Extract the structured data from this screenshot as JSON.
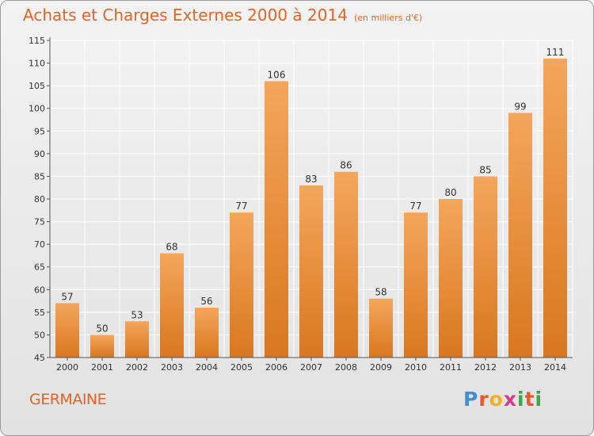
{
  "header": {
    "title": "Achats et Charges Externes 2000 à 2014",
    "subtitle": "(en milliers d'€)"
  },
  "footer": {
    "commune": "GERMAINE",
    "logo_letters": [
      "P",
      "r",
      "o",
      "x",
      "i",
      "t",
      "i"
    ]
  },
  "colors": {
    "bar_top": "#f5a65b",
    "bar_bottom": "#d9771f",
    "title": "#e0652a",
    "grid": "#ffffff",
    "logo": [
      "#3d8fd6",
      "#e55a2a",
      "#f1b21c",
      "#d93a8a",
      "#3aa845",
      "#e55a2a",
      "#3aa845"
    ]
  },
  "chart_data": {
    "type": "bar",
    "title": "Achats et Charges Externes 2000 à 2014",
    "subtitle": "(en milliers d'€)",
    "categories": [
      "2000",
      "2001",
      "2002",
      "2003",
      "2004",
      "2005",
      "2006",
      "2007",
      "2008",
      "2009",
      "2010",
      "2011",
      "2012",
      "2013",
      "2014"
    ],
    "values": [
      57,
      50,
      53,
      68,
      56,
      77,
      106,
      83,
      86,
      58,
      77,
      80,
      85,
      99,
      111
    ],
    "ylim": [
      45,
      115
    ],
    "yticks": [
      45,
      50,
      55,
      60,
      65,
      70,
      75,
      80,
      85,
      90,
      95,
      100,
      105,
      110,
      115
    ],
    "grid": true
  }
}
